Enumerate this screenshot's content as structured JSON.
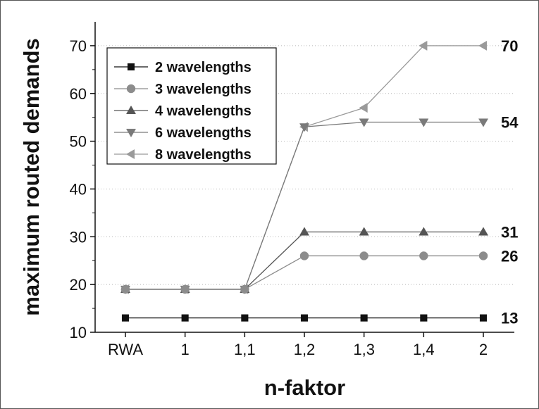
{
  "chart_data": {
    "type": "line",
    "xlabel": "n-faktor",
    "ylabel": "maximum routed demands",
    "categories": [
      "RWA",
      "1",
      "1,1",
      "1,2",
      "1,3",
      "1,4",
      "2"
    ],
    "ylim": [
      10,
      75
    ],
    "yticks": [
      10,
      20,
      30,
      40,
      50,
      60,
      70
    ],
    "grid": "horizontal dotted",
    "legend_position": "top-left",
    "series": [
      {
        "name": "2 wavelengths",
        "marker": "square",
        "color": "#111111",
        "values": [
          13,
          13,
          13,
          13,
          13,
          13,
          13
        ]
      },
      {
        "name": "3 wavelengths",
        "marker": "circle",
        "color": "#8c8c8c",
        "values": [
          19,
          19,
          19,
          26,
          26,
          26,
          26
        ]
      },
      {
        "name": "4 wavelengths",
        "marker": "triangle-up",
        "color": "#555555",
        "values": [
          19,
          19,
          19,
          31,
          31,
          31,
          31
        ]
      },
      {
        "name": "6 wavelengths",
        "marker": "triangle-down",
        "color": "#7a7a7a",
        "values": [
          19,
          19,
          19,
          53,
          54,
          54,
          54
        ]
      },
      {
        "name": "8 wavelengths",
        "marker": "triangle-left",
        "color": "#9a9a9a",
        "values": [
          19,
          19,
          19,
          53,
          57,
          70,
          70
        ]
      }
    ],
    "end_labels": [
      "13",
      "26",
      "31",
      "54",
      "70"
    ]
  }
}
